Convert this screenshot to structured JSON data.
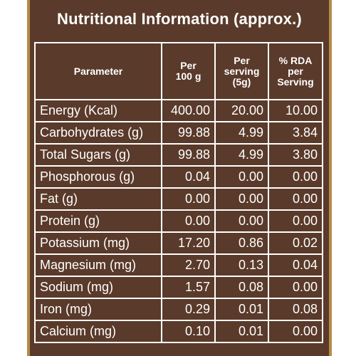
{
  "title": "Nutritional Information (approx.)",
  "headers": {
    "parameter": "Parameter",
    "per100g": "Per\n100 g",
    "perServing": "Per\nserving\n(5g)",
    "rda": "% RDA\nper\nServing"
  },
  "rows": [
    {
      "name": "Energy (Kcal)",
      "per100g": "400.00",
      "perServing": "20.00",
      "rda": "10.00"
    },
    {
      "name": "Carbohydrates (g)",
      "per100g": "99.88",
      "perServing": "4.99",
      "rda": "3.84"
    },
    {
      "name": "Total Sugars (g)",
      "per100g": "99.88",
      "perServing": "4.99",
      "rda": "3.80"
    },
    {
      "name": "Phosphorous (g)",
      "per100g": "0.04",
      "perServing": "0.00",
      "rda": "0.00"
    },
    {
      "name": "Fat (g)",
      "per100g": "0.00",
      "perServing": "0.00",
      "rda": "0.00"
    },
    {
      "name": "Protein (g)",
      "per100g": "0.00",
      "perServing": "0.00",
      "rda": "0.00"
    },
    {
      "name": "Potassium (mg)",
      "per100g": "17.20",
      "perServing": "0.86",
      "rda": "0.02"
    },
    {
      "name": "Magnesium (mg)",
      "per100g": "2.70",
      "perServing": "0.13",
      "rda": "0.04"
    },
    {
      "name": "Sodium (mg)",
      "per100g": "1.57",
      "perServing": "0.08",
      "rda": "0.00"
    },
    {
      "name": "Iron  (mg)",
      "per100g": "0.29",
      "perServing": "0.01",
      "rda": "0.08"
    },
    {
      "name": "Calcium (mg)",
      "per100g": "0.10",
      "perServing": "0.01",
      "rda": "0.00"
    }
  ]
}
